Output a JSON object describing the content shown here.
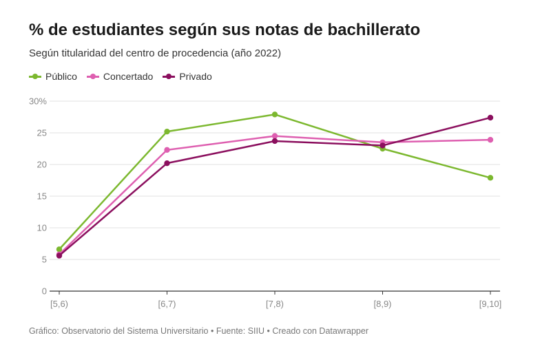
{
  "title": "% de estudiantes según sus notas de bachillerato",
  "subtitle": "Según titularidad del centro de procedencia (año 2022)",
  "footer": "Gráfico: Observatorio del Sistema Universitario • Fuente: SIIU • Creado con Datawrapper",
  "legend": [
    {
      "label": "Público",
      "color": "#7cb82f"
    },
    {
      "label": "Concertado",
      "color": "#de5fb0"
    },
    {
      "label": "Privado",
      "color": "#8b0f5e"
    }
  ],
  "chart_data": {
    "type": "line",
    "categories": [
      "[5,6)",
      "[6,7)",
      "[7,8)",
      "[8,9)",
      "[9,10]"
    ],
    "series": [
      {
        "name": "Público",
        "color": "#7cb82f",
        "values": [
          6.6,
          25.2,
          27.9,
          22.5,
          17.9
        ]
      },
      {
        "name": "Concertado",
        "color": "#de5fb0",
        "values": [
          5.8,
          22.3,
          24.5,
          23.5,
          23.9
        ]
      },
      {
        "name": "Privado",
        "color": "#8b0f5e",
        "values": [
          5.6,
          20.2,
          23.7,
          23.0,
          27.4
        ]
      }
    ],
    "ylim": [
      0,
      30
    ],
    "yticks": [
      {
        "value": 0,
        "label": "0"
      },
      {
        "value": 5,
        "label": "5"
      },
      {
        "value": 10,
        "label": "10"
      },
      {
        "value": 15,
        "label": "15"
      },
      {
        "value": 20,
        "label": "20"
      },
      {
        "value": 25,
        "label": "25"
      },
      {
        "value": 30,
        "label": "30%"
      }
    ],
    "grid": true,
    "legend_position": "top-left"
  }
}
